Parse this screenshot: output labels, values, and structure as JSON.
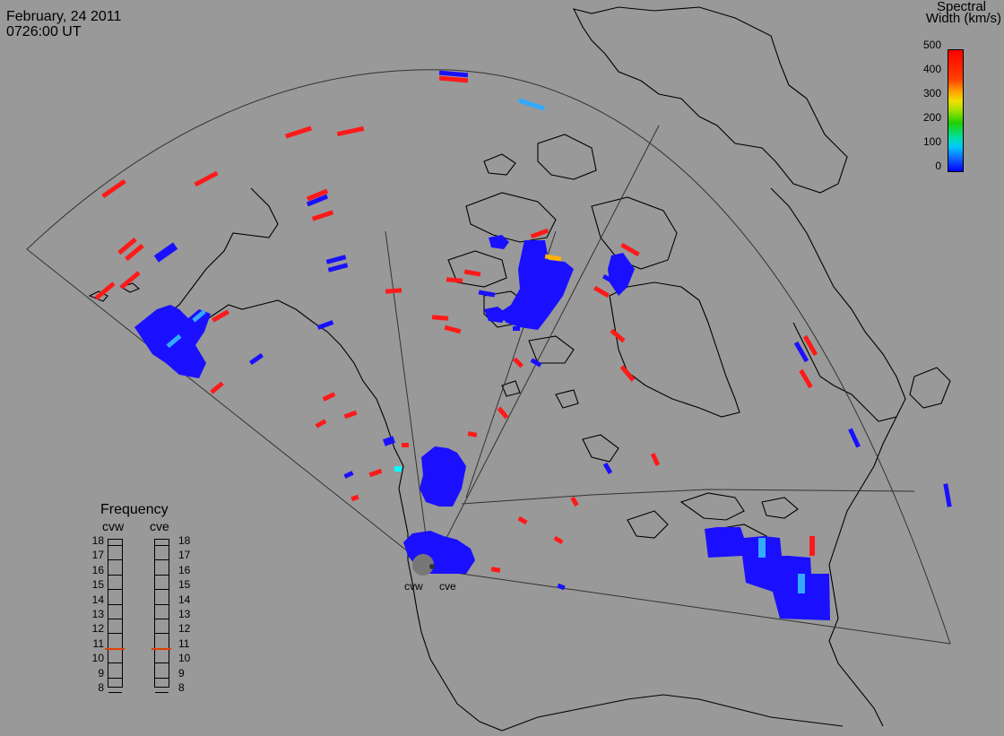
{
  "header": {
    "date": "February, 24 2011",
    "time": "0726:00 UT"
  },
  "colorbar": {
    "title_line1": "Spectral",
    "title_line2": "Width (km/s)",
    "ticks": [
      "500",
      "400",
      "300",
      "200",
      "100",
      "0"
    ],
    "range": [
      0,
      500
    ]
  },
  "frequency_panel": {
    "title": "Frequency",
    "radars": [
      {
        "name": "cvw",
        "value": 11
      },
      {
        "name": "cve",
        "value": 11
      }
    ],
    "ticks": [
      "18",
      "17",
      "16",
      "15",
      "14",
      "13",
      "12",
      "11",
      "10",
      "9",
      "8"
    ]
  },
  "sites": [
    {
      "name": "cvw"
    },
    {
      "name": "cve"
    }
  ],
  "colors": {
    "background": "#999999",
    "low_width": "#1a10ff",
    "high_width": "#ff1a1a",
    "mid_width": "#33aaff",
    "marker": "#e04000"
  }
}
